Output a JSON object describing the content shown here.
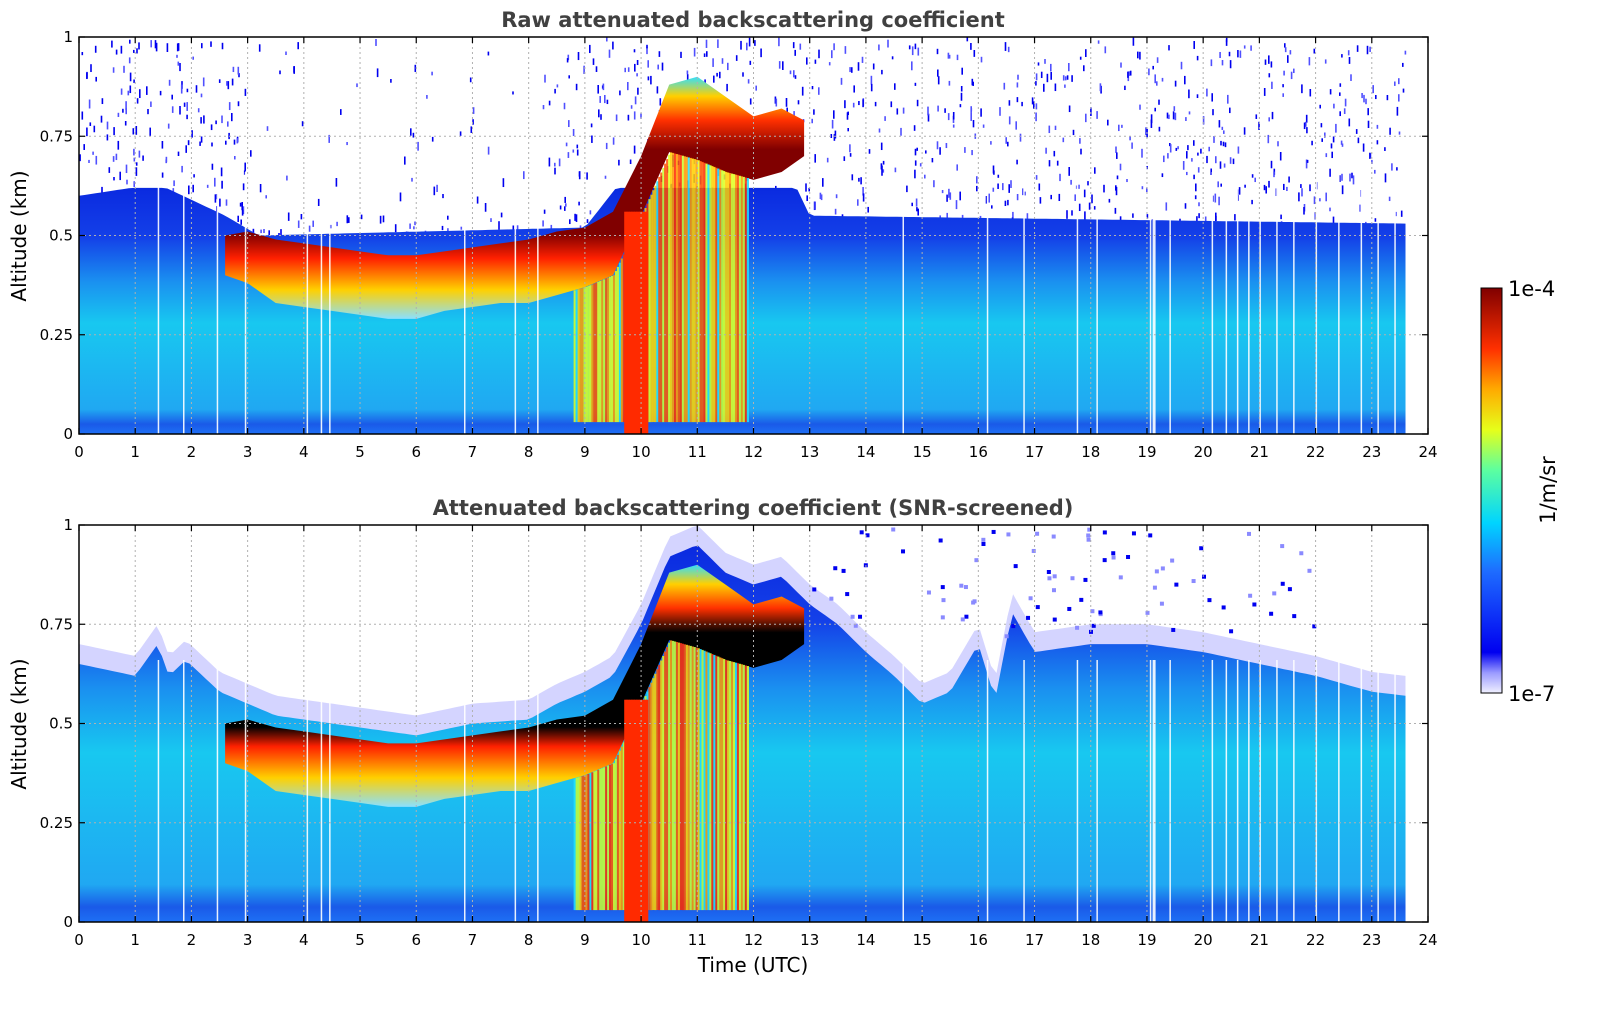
{
  "chart_data": [
    {
      "type": "heatmap",
      "variant": "raw",
      "title": "Raw attenuated backscattering coefficient",
      "xlabel": "",
      "ylabel": "Altitude (km)",
      "xlim": [
        0,
        24
      ],
      "ylim": [
        0,
        1
      ],
      "x_ticks": [
        "0",
        "1",
        "2",
        "3",
        "4",
        "5",
        "6",
        "7",
        "8",
        "9",
        "10",
        "11",
        "12",
        "13",
        "14",
        "15",
        "16",
        "17",
        "18",
        "19",
        "20",
        "21",
        "22",
        "23",
        "24"
      ],
      "y_ticks": [
        "0",
        "0.25",
        "0.5",
        "0.75",
        "1"
      ],
      "grid": true,
      "data_coverage_hours": [
        0,
        23.6
      ],
      "layer_profile": {
        "time_utc": [
          2.6,
          3.0,
          3.5,
          4.0,
          4.5,
          5.0,
          5.5,
          6.0,
          6.5,
          7.0,
          7.5,
          8.0,
          8.5,
          9.0,
          9.5,
          10.0,
          10.5,
          11.0,
          11.5,
          12.0,
          12.5,
          12.9
        ],
        "layer_top_km": [
          0.5,
          0.51,
          0.49,
          0.48,
          0.47,
          0.46,
          0.45,
          0.45,
          0.46,
          0.47,
          0.48,
          0.49,
          0.51,
          0.52,
          0.56,
          0.7,
          0.88,
          0.9,
          0.85,
          0.8,
          0.82,
          0.79
        ],
        "layer_bottom_km": [
          0.4,
          0.38,
          0.33,
          0.32,
          0.31,
          0.3,
          0.29,
          0.29,
          0.31,
          0.32,
          0.33,
          0.33,
          0.35,
          0.37,
          0.4,
          0.55,
          0.71,
          0.69,
          0.66,
          0.64,
          0.66,
          0.7
        ]
      }
    },
    {
      "type": "heatmap",
      "variant": "screened",
      "title": "Attenuated backscattering coefficient (SNR-screened)",
      "xlabel": "Time (UTC)",
      "ylabel": "Altitude (km)",
      "xlim": [
        0,
        24
      ],
      "ylim": [
        0,
        1
      ],
      "x_ticks": [
        "0",
        "1",
        "2",
        "3",
        "4",
        "5",
        "6",
        "7",
        "8",
        "9",
        "10",
        "11",
        "12",
        "13",
        "14",
        "15",
        "16",
        "17",
        "18",
        "19",
        "20",
        "21",
        "22",
        "23",
        "24"
      ],
      "y_ticks": [
        "0",
        "0.25",
        "0.5",
        "0.75",
        "1"
      ],
      "grid": true,
      "data_coverage_hours": [
        0,
        23.6
      ],
      "signal_top_profile": {
        "time_utc": [
          0.0,
          1.0,
          1.4,
          1.6,
          1.9,
          2.5,
          3.0,
          3.5,
          4.0,
          5.0,
          6.0,
          7.0,
          8.0,
          8.5,
          9.0,
          9.5,
          10.0,
          10.5,
          11.0,
          11.5,
          12.0,
          12.5,
          13.0,
          13.5,
          14.0,
          14.5,
          15.0,
          15.5,
          16.0,
          16.3,
          16.6,
          17.0,
          18.0,
          19.0,
          20.0,
          21.0,
          22.0,
          23.0,
          23.6
        ],
        "altitude_km": [
          0.65,
          0.62,
          0.7,
          0.62,
          0.66,
          0.58,
          0.55,
          0.52,
          0.51,
          0.49,
          0.47,
          0.5,
          0.51,
          0.55,
          0.58,
          0.62,
          0.75,
          0.92,
          0.95,
          0.88,
          0.85,
          0.87,
          0.8,
          0.75,
          0.68,
          0.62,
          0.55,
          0.58,
          0.7,
          0.56,
          0.78,
          0.68,
          0.7,
          0.7,
          0.68,
          0.65,
          0.62,
          0.58,
          0.57
        ]
      }
    }
  ],
  "colorbar": {
    "label": "1/m/sr",
    "max_label": "1e-4",
    "min_label": "1e-7",
    "scale": "log",
    "range": [
      1e-07,
      0.0001
    ],
    "colormap": "jet"
  }
}
